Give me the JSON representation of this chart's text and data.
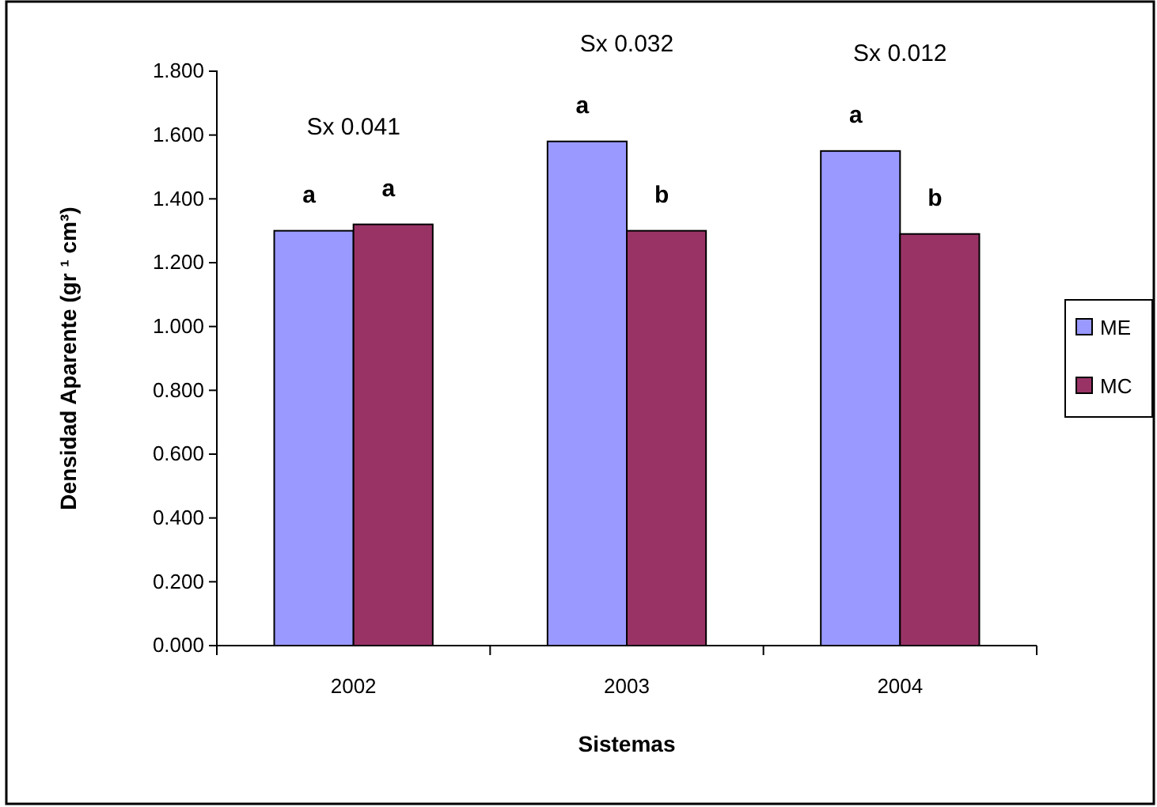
{
  "chart_data": {
    "type": "bar",
    "xlabel": "Sistemas",
    "ylabel": "Densidad Aparente (gr ¹ cm³)",
    "categories": [
      "2002",
      "2003",
      "2004"
    ],
    "series": [
      {
        "name": "ME",
        "color": "#9999ff",
        "values": [
          1.3,
          1.58,
          1.55
        ],
        "value_labels": [
          "a",
          "a",
          "a"
        ]
      },
      {
        "name": "MC",
        "color": "#993366",
        "values": [
          1.32,
          1.3,
          1.29
        ],
        "value_labels": [
          "a",
          "b",
          "b"
        ]
      }
    ],
    "ylim": [
      0,
      1.8
    ],
    "yticks": [
      {
        "value": 0,
        "label": "0.000"
      },
      {
        "value": 0.2,
        "label": "0.200"
      },
      {
        "value": 0.4,
        "label": "0.400"
      },
      {
        "value": 0.6,
        "label": "0.600"
      },
      {
        "value": 0.8,
        "label": "0.800"
      },
      {
        "value": 1.0,
        "label": "1.000"
      },
      {
        "value": 1.2,
        "label": "1.200"
      },
      {
        "value": 1.4,
        "label": "1.400"
      },
      {
        "value": 1.6,
        "label": "1.600"
      },
      {
        "value": 1.8,
        "label": "1.800"
      }
    ],
    "annotations": [
      "Sx 0.041",
      "Sx 0.032",
      "Sx 0.012"
    ],
    "grid": false,
    "legend": "right"
  }
}
